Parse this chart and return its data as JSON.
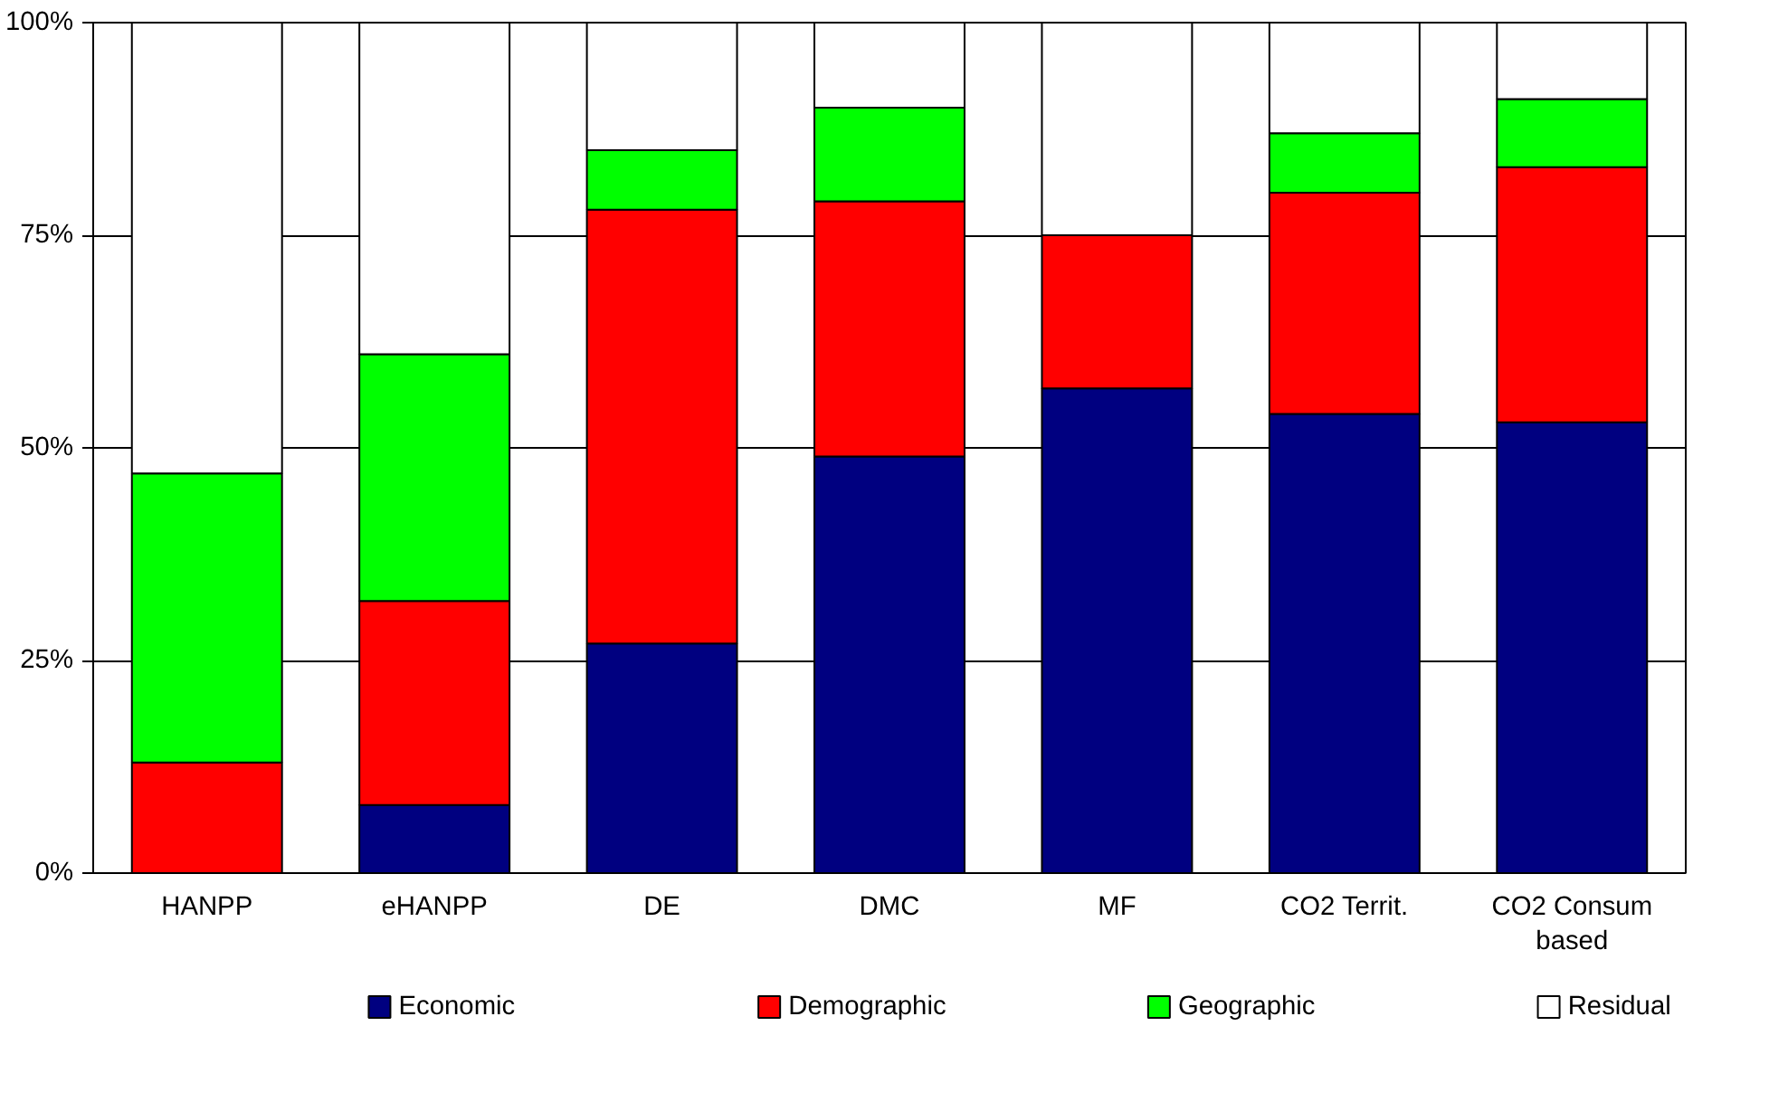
{
  "chart_data": {
    "type": "bar",
    "stacked": true,
    "categories": [
      "HANPP",
      "eHANPP",
      "DE",
      "DMC",
      "MF",
      "CO2 Territ.",
      "CO2 Consum based"
    ],
    "series": [
      {
        "name": "Economic",
        "color": "#000080",
        "values": [
          0,
          8,
          27,
          49,
          57,
          54,
          53
        ]
      },
      {
        "name": "Demographic",
        "color": "#ff0000",
        "values": [
          13,
          24,
          51,
          30,
          18,
          26,
          30
        ]
      },
      {
        "name": "Geographic",
        "color": "#00ff00",
        "values": [
          34,
          29,
          7,
          11,
          0,
          7,
          8
        ]
      },
      {
        "name": "Residual",
        "color": "#ffffff",
        "values": [
          53,
          39,
          15,
          10,
          25,
          13,
          9
        ]
      }
    ],
    "ylim": [
      0,
      100
    ],
    "yticks": [
      {
        "value": 0,
        "label": "0%"
      },
      {
        "value": 25,
        "label": "25%"
      },
      {
        "value": 50,
        "label": "50%"
      },
      {
        "value": 75,
        "label": "75%"
      },
      {
        "value": 100,
        "label": "100%"
      }
    ],
    "grid": "y",
    "legend": "bottom"
  }
}
